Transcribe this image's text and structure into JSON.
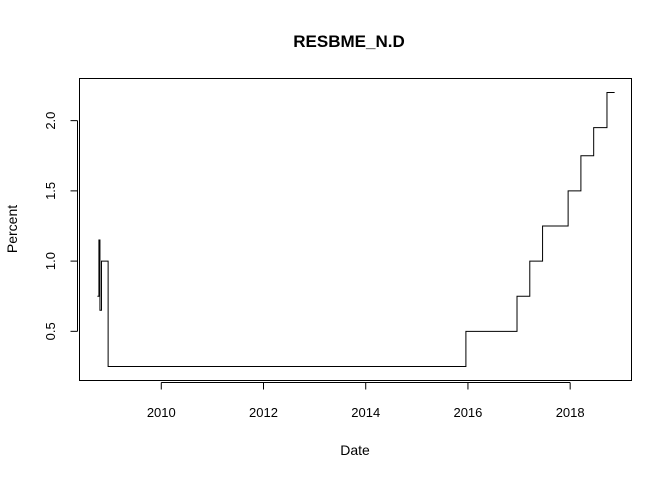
{
  "chart_data": {
    "type": "line",
    "title": "RESBME_N.D",
    "xlabel": "Date",
    "ylabel": "Percent",
    "x_ticks": [
      {
        "value": 2010,
        "label": "2010"
      },
      {
        "value": 2012,
        "label": "2012"
      },
      {
        "value": 2014,
        "label": "2014"
      },
      {
        "value": 2016,
        "label": "2016"
      },
      {
        "value": 2018,
        "label": "2018"
      }
    ],
    "y_ticks": [
      {
        "value": 0.5,
        "label": "0.5"
      },
      {
        "value": 1.0,
        "label": "1.0"
      },
      {
        "value": 1.5,
        "label": "1.5"
      },
      {
        "value": 2.0,
        "label": "2.0"
      }
    ],
    "xlim": [
      2008.4,
      2019.2
    ],
    "ylim": [
      0.15,
      2.3
    ],
    "grid": false,
    "legend": "none",
    "series": [
      {
        "line_type": "step",
        "x": [
          2008.75,
          2008.78,
          2008.8,
          2008.83,
          2008.85,
          2008.87,
          2008.96,
          2015.96,
          2016.96,
          2017.21,
          2017.46,
          2017.96,
          2018.21,
          2018.46,
          2018.72,
          2018.87
        ],
        "y": [
          0.75,
          1.15,
          0.65,
          1.0,
          1.0,
          1.0,
          0.25,
          0.5,
          0.75,
          1.0,
          1.25,
          1.5,
          1.75,
          1.95,
          2.2,
          2.2
        ]
      }
    ]
  }
}
